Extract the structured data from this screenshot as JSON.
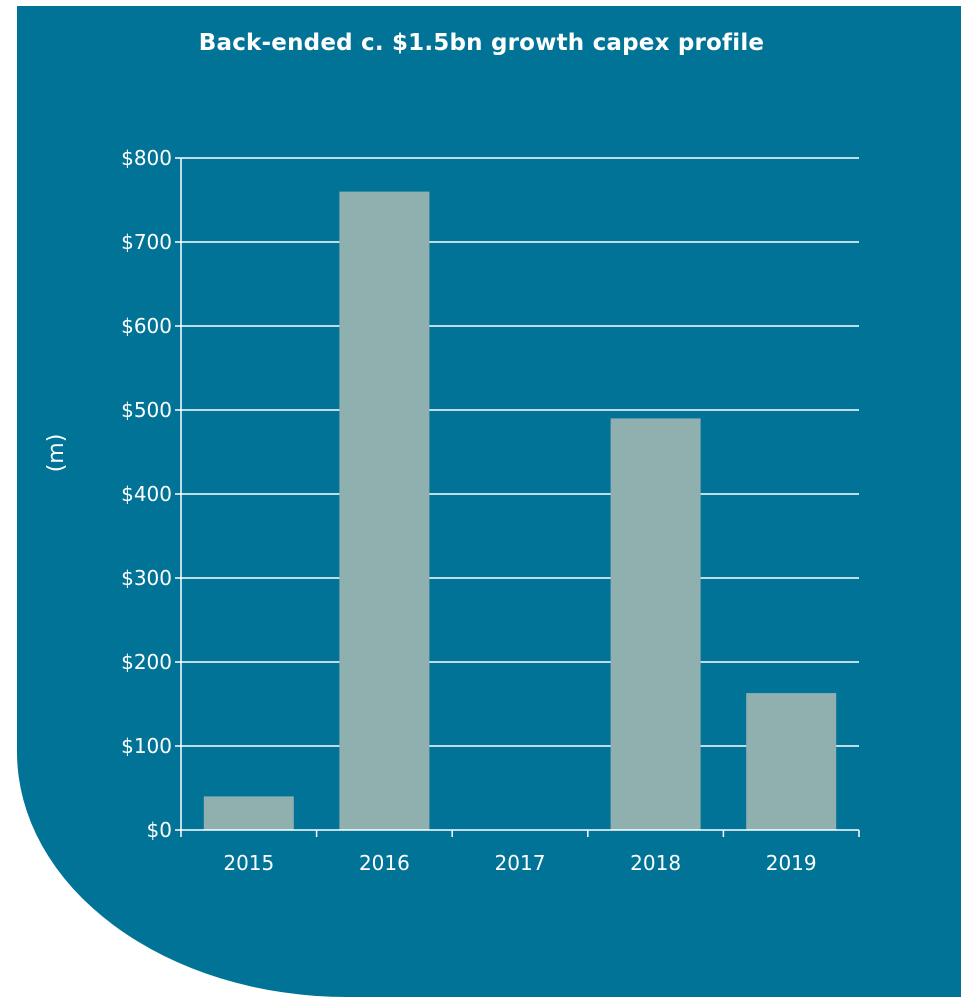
{
  "colors": {
    "background": "#007396",
    "bar": "#8fb0af",
    "grid": "#ffffff",
    "text": "#ffffff"
  },
  "chart_data": {
    "type": "bar",
    "title": "Back-ended c. $1.5bn growth capex profile",
    "xlabel": "",
    "ylabel": "(m)",
    "categories": [
      "2015",
      "2016",
      "2017",
      "2018",
      "2019"
    ],
    "values": [
      40,
      760,
      0,
      490,
      163
    ],
    "ylim": [
      0,
      800
    ],
    "yticks": [
      0,
      100,
      200,
      300,
      400,
      500,
      600,
      700,
      800
    ],
    "ytick_labels": [
      "$0",
      "$100",
      "$200",
      "$300",
      "$400",
      "$500",
      "$600",
      "$700",
      "$800"
    ],
    "grid": true,
    "legend": "none"
  }
}
